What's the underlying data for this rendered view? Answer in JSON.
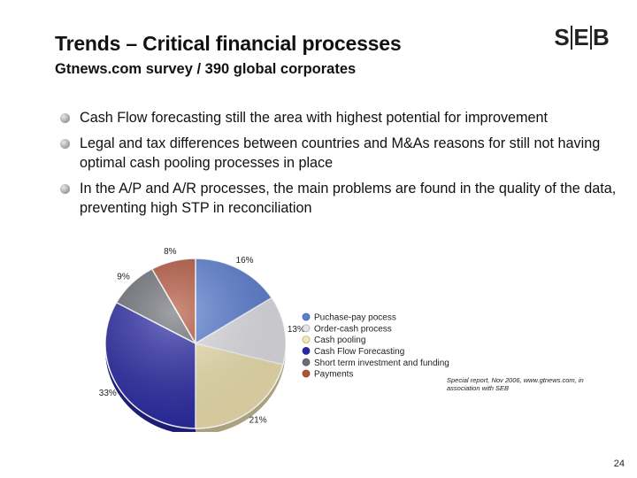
{
  "slide": {
    "title": "Trends – Critical financial processes",
    "subtitle": "Gtnews.com survey / 390 global corporates",
    "logo": {
      "letters": [
        "S",
        "E",
        "B"
      ]
    },
    "bullets": [
      "Cash Flow forecasting still the area with highest potential for improvement",
      "Legal and tax differences between countries and M&As reasons for still not having optimal cash pooling processes in place",
      "In the A/P and A/R processes, the main problems are found in the quality of the data, preventing high STP in reconciliation"
    ],
    "source_note": "Special report, Nov 2006, www.gtnews.com, in association with SEB",
    "page_number": "24"
  },
  "chart_data": {
    "type": "pie",
    "title": "",
    "start_angle_deg": 0,
    "direction": "clockwise",
    "slices": [
      {
        "label": "Puchase-pay pocess",
        "value": 16,
        "value_label": "16%",
        "color": "#5b7fd6"
      },
      {
        "label": "Order-cash process",
        "value": 13,
        "value_label": "13%",
        "color": "#e4e4ea"
      },
      {
        "label": "Cash pooling",
        "value": 21,
        "value_label": "21%",
        "color": "#f3e6b2"
      },
      {
        "label": "Cash Flow Forecasting",
        "value": 33,
        "value_label": "33%",
        "color": "#2a2aa8"
      },
      {
        "label": "Short term investment and funding",
        "value": 9,
        "value_label": "9%",
        "color": "#6e6e78"
      },
      {
        "label": "Payments",
        "value": 8,
        "value_label": "8%",
        "color": "#b5533a"
      }
    ],
    "legend_position": "right"
  }
}
